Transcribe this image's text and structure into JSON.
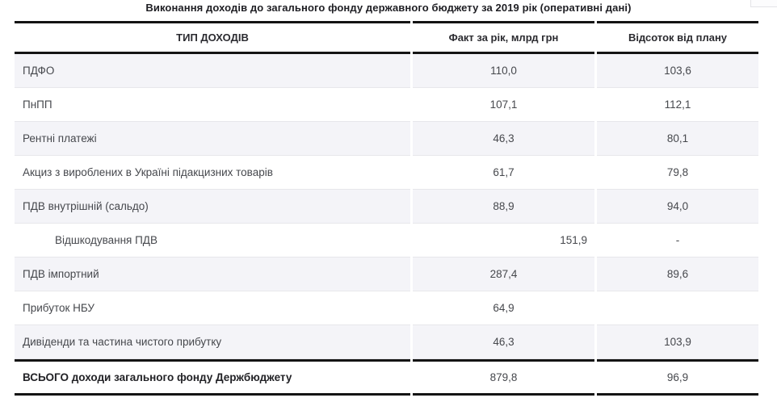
{
  "title": "Виконання доходів до загального фонду державного бюджету за 2019 рік (оперативні дані)",
  "chart_data": {
    "type": "table",
    "title": "Виконання доходів до загального фонду державного бюджету за 2019 рік (оперативні дані)",
    "columns": [
      "ТИП ДОХОДІВ",
      "Факт за рік, млрд грн",
      "Відсоток від плану"
    ],
    "rows": [
      {
        "type": "ПДФО",
        "fact": "110,0",
        "percent": "103,6"
      },
      {
        "type": "ПнПП",
        "fact": "107,1",
        "percent": "112,1"
      },
      {
        "type": "Рентні платежі",
        "fact": "46,3",
        "percent": "80,1"
      },
      {
        "type": "Акциз з вироблених в Україні підакцизних товарів",
        "fact": "61,7",
        "percent": "79,8"
      },
      {
        "type": "ПДВ внутрішній (сальдо)",
        "fact": "88,9",
        "percent": "94,0"
      },
      {
        "type": "Відшкодування ПДВ",
        "fact": "151,9",
        "percent": "-"
      },
      {
        "type": "ПДВ імпортний",
        "fact": "287,4",
        "percent": "89,6"
      },
      {
        "type": "Прибуток НБУ",
        "fact": "64,9",
        "percent": ""
      },
      {
        "type": "Дивіденди та частина чистого прибутку",
        "fact": "46,3",
        "percent": "103,9"
      }
    ],
    "total_row": {
      "type": "ВСЬОГО доходи загального фонду Держбюджету",
      "fact": "879,8",
      "percent": "96,9"
    }
  },
  "colors": {
    "row_stripe": "#f4f4f8",
    "heavy_border": "#141414",
    "light_border": "#e7e7eb",
    "text": "#46484d"
  }
}
